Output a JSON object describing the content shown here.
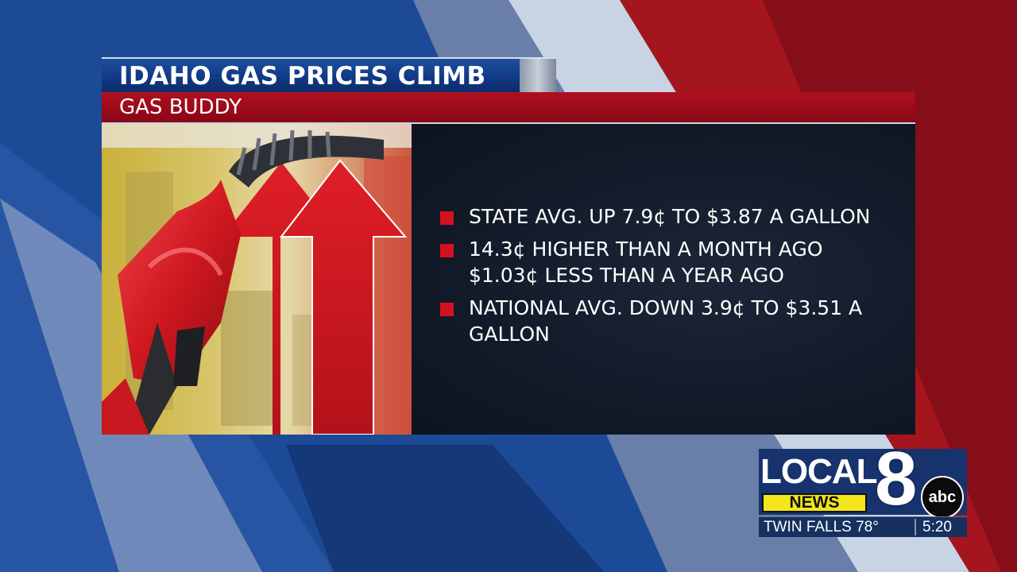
{
  "graphic": {
    "title": "IDAHO GAS PRICES CLIMB",
    "source": "GAS BUDDY",
    "bullets": [
      {
        "lines": [
          "STATE AVG. UP 7.9¢ TO $3.87 A GALLON"
        ]
      },
      {
        "lines": [
          "14.3¢ HIGHER THAN A MONTH AGO",
          "$1.03¢ LESS THAN A YEAR AGO"
        ]
      },
      {
        "lines": [
          "NATIONAL AVG. DOWN 3.9¢ TO $3.51 A",
          "GALLON"
        ]
      }
    ]
  },
  "bug": {
    "station_word": "LOCAL",
    "news_word": "NEWS",
    "channel_number": "8",
    "network": "abc",
    "location_temp": "TWIN FALLS 78°",
    "time": "5:20"
  },
  "colors": {
    "title_blue": "#123a86",
    "source_red": "#9a0a18",
    "bullet_red": "#d4121f",
    "panel_dark": "#121a28",
    "news_yellow": "#f2e51b"
  }
}
